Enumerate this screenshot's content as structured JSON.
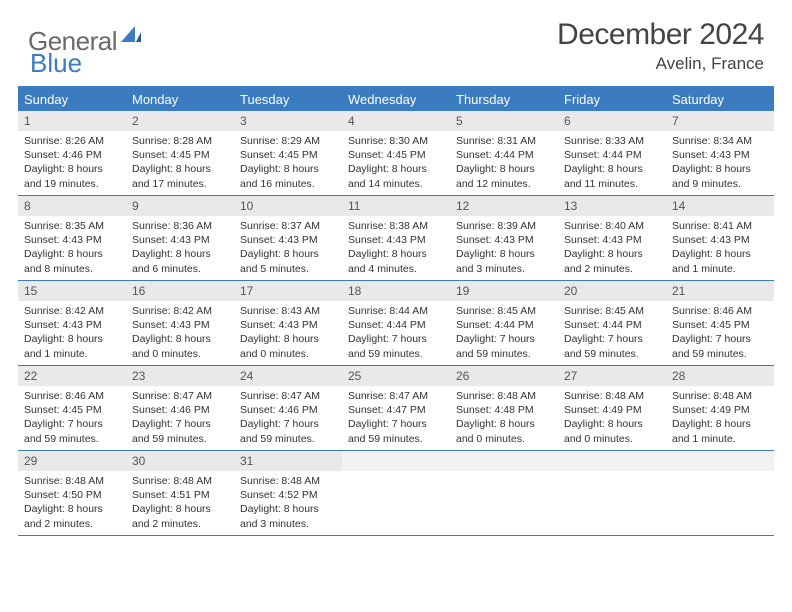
{
  "logo": {
    "general": "General",
    "blue": "Blue"
  },
  "title": "December 2024",
  "location": "Avelin, France",
  "colors": {
    "accent": "#3b7bbf",
    "daynum_bg": "#e9e9e9",
    "empty_bg": "#f2f2f2",
    "text": "#333333",
    "logo_gray": "#6a6a6a"
  },
  "columns": [
    "Sunday",
    "Monday",
    "Tuesday",
    "Wednesday",
    "Thursday",
    "Friday",
    "Saturday"
  ],
  "weeks": [
    [
      {
        "n": "1",
        "sr": "Sunrise: 8:26 AM",
        "ss": "Sunset: 4:46 PM",
        "d1": "Daylight: 8 hours",
        "d2": "and 19 minutes."
      },
      {
        "n": "2",
        "sr": "Sunrise: 8:28 AM",
        "ss": "Sunset: 4:45 PM",
        "d1": "Daylight: 8 hours",
        "d2": "and 17 minutes."
      },
      {
        "n": "3",
        "sr": "Sunrise: 8:29 AM",
        "ss": "Sunset: 4:45 PM",
        "d1": "Daylight: 8 hours",
        "d2": "and 16 minutes."
      },
      {
        "n": "4",
        "sr": "Sunrise: 8:30 AM",
        "ss": "Sunset: 4:45 PM",
        "d1": "Daylight: 8 hours",
        "d2": "and 14 minutes."
      },
      {
        "n": "5",
        "sr": "Sunrise: 8:31 AM",
        "ss": "Sunset: 4:44 PM",
        "d1": "Daylight: 8 hours",
        "d2": "and 12 minutes."
      },
      {
        "n": "6",
        "sr": "Sunrise: 8:33 AM",
        "ss": "Sunset: 4:44 PM",
        "d1": "Daylight: 8 hours",
        "d2": "and 11 minutes."
      },
      {
        "n": "7",
        "sr": "Sunrise: 8:34 AM",
        "ss": "Sunset: 4:43 PM",
        "d1": "Daylight: 8 hours",
        "d2": "and 9 minutes."
      }
    ],
    [
      {
        "n": "8",
        "sr": "Sunrise: 8:35 AM",
        "ss": "Sunset: 4:43 PM",
        "d1": "Daylight: 8 hours",
        "d2": "and 8 minutes."
      },
      {
        "n": "9",
        "sr": "Sunrise: 8:36 AM",
        "ss": "Sunset: 4:43 PM",
        "d1": "Daylight: 8 hours",
        "d2": "and 6 minutes."
      },
      {
        "n": "10",
        "sr": "Sunrise: 8:37 AM",
        "ss": "Sunset: 4:43 PM",
        "d1": "Daylight: 8 hours",
        "d2": "and 5 minutes."
      },
      {
        "n": "11",
        "sr": "Sunrise: 8:38 AM",
        "ss": "Sunset: 4:43 PM",
        "d1": "Daylight: 8 hours",
        "d2": "and 4 minutes."
      },
      {
        "n": "12",
        "sr": "Sunrise: 8:39 AM",
        "ss": "Sunset: 4:43 PM",
        "d1": "Daylight: 8 hours",
        "d2": "and 3 minutes."
      },
      {
        "n": "13",
        "sr": "Sunrise: 8:40 AM",
        "ss": "Sunset: 4:43 PM",
        "d1": "Daylight: 8 hours",
        "d2": "and 2 minutes."
      },
      {
        "n": "14",
        "sr": "Sunrise: 8:41 AM",
        "ss": "Sunset: 4:43 PM",
        "d1": "Daylight: 8 hours",
        "d2": "and 1 minute."
      }
    ],
    [
      {
        "n": "15",
        "sr": "Sunrise: 8:42 AM",
        "ss": "Sunset: 4:43 PM",
        "d1": "Daylight: 8 hours",
        "d2": "and 1 minute."
      },
      {
        "n": "16",
        "sr": "Sunrise: 8:42 AM",
        "ss": "Sunset: 4:43 PM",
        "d1": "Daylight: 8 hours",
        "d2": "and 0 minutes."
      },
      {
        "n": "17",
        "sr": "Sunrise: 8:43 AM",
        "ss": "Sunset: 4:43 PM",
        "d1": "Daylight: 8 hours",
        "d2": "and 0 minutes."
      },
      {
        "n": "18",
        "sr": "Sunrise: 8:44 AM",
        "ss": "Sunset: 4:44 PM",
        "d1": "Daylight: 7 hours",
        "d2": "and 59 minutes."
      },
      {
        "n": "19",
        "sr": "Sunrise: 8:45 AM",
        "ss": "Sunset: 4:44 PM",
        "d1": "Daylight: 7 hours",
        "d2": "and 59 minutes."
      },
      {
        "n": "20",
        "sr": "Sunrise: 8:45 AM",
        "ss": "Sunset: 4:44 PM",
        "d1": "Daylight: 7 hours",
        "d2": "and 59 minutes."
      },
      {
        "n": "21",
        "sr": "Sunrise: 8:46 AM",
        "ss": "Sunset: 4:45 PM",
        "d1": "Daylight: 7 hours",
        "d2": "and 59 minutes."
      }
    ],
    [
      {
        "n": "22",
        "sr": "Sunrise: 8:46 AM",
        "ss": "Sunset: 4:45 PM",
        "d1": "Daylight: 7 hours",
        "d2": "and 59 minutes."
      },
      {
        "n": "23",
        "sr": "Sunrise: 8:47 AM",
        "ss": "Sunset: 4:46 PM",
        "d1": "Daylight: 7 hours",
        "d2": "and 59 minutes."
      },
      {
        "n": "24",
        "sr": "Sunrise: 8:47 AM",
        "ss": "Sunset: 4:46 PM",
        "d1": "Daylight: 7 hours",
        "d2": "and 59 minutes."
      },
      {
        "n": "25",
        "sr": "Sunrise: 8:47 AM",
        "ss": "Sunset: 4:47 PM",
        "d1": "Daylight: 7 hours",
        "d2": "and 59 minutes."
      },
      {
        "n": "26",
        "sr": "Sunrise: 8:48 AM",
        "ss": "Sunset: 4:48 PM",
        "d1": "Daylight: 8 hours",
        "d2": "and 0 minutes."
      },
      {
        "n": "27",
        "sr": "Sunrise: 8:48 AM",
        "ss": "Sunset: 4:49 PM",
        "d1": "Daylight: 8 hours",
        "d2": "and 0 minutes."
      },
      {
        "n": "28",
        "sr": "Sunrise: 8:48 AM",
        "ss": "Sunset: 4:49 PM",
        "d1": "Daylight: 8 hours",
        "d2": "and 1 minute."
      }
    ],
    [
      {
        "n": "29",
        "sr": "Sunrise: 8:48 AM",
        "ss": "Sunset: 4:50 PM",
        "d1": "Daylight: 8 hours",
        "d2": "and 2 minutes."
      },
      {
        "n": "30",
        "sr": "Sunrise: 8:48 AM",
        "ss": "Sunset: 4:51 PM",
        "d1": "Daylight: 8 hours",
        "d2": "and 2 minutes."
      },
      {
        "n": "31",
        "sr": "Sunrise: 8:48 AM",
        "ss": "Sunset: 4:52 PM",
        "d1": "Daylight: 8 hours",
        "d2": "and 3 minutes."
      },
      {
        "empty": true
      },
      {
        "empty": true
      },
      {
        "empty": true
      },
      {
        "empty": true
      }
    ]
  ]
}
